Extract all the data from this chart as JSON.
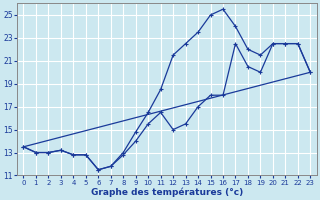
{
  "xlabel": "Graphe des températures (°c)",
  "bg_color": "#cce8f0",
  "grid_color": "#ffffff",
  "line_color": "#1a3a9a",
  "xlim": [
    -0.5,
    23.5
  ],
  "ylim": [
    11,
    26
  ],
  "xticks": [
    0,
    1,
    2,
    3,
    4,
    5,
    6,
    7,
    8,
    9,
    10,
    11,
    12,
    13,
    14,
    15,
    16,
    17,
    18,
    19,
    20,
    21,
    22,
    23
  ],
  "yticks": [
    11,
    13,
    15,
    17,
    19,
    21,
    23,
    25
  ],
  "curve1_x": [
    0,
    1,
    2,
    3,
    4,
    5,
    6,
    7,
    8,
    9,
    10,
    11,
    12,
    13,
    14,
    15,
    16,
    17,
    18,
    19,
    20,
    21,
    22,
    23
  ],
  "curve1_y": [
    13.5,
    13.0,
    13.0,
    13.2,
    12.8,
    12.8,
    11.5,
    11.8,
    13.0,
    14.8,
    16.5,
    18.5,
    21.5,
    22.5,
    23.5,
    25.0,
    25.5,
    24.0,
    22.0,
    21.5,
    22.5,
    22.5,
    22.5,
    20.0
  ],
  "curve2_x": [
    0,
    1,
    2,
    3,
    4,
    5,
    6,
    7,
    8,
    9,
    10,
    11,
    12,
    13,
    14,
    15,
    16,
    17,
    18,
    19,
    20,
    21,
    22,
    23
  ],
  "curve2_y": [
    13.5,
    13.0,
    13.0,
    13.2,
    12.8,
    12.8,
    11.5,
    11.8,
    12.8,
    14.0,
    15.5,
    16.5,
    15.0,
    15.5,
    17.0,
    18.0,
    18.0,
    22.5,
    20.5,
    20.0,
    22.5,
    22.5,
    22.5,
    20.0
  ],
  "curve3_x": [
    0,
    23
  ],
  "curve3_y": [
    13.5,
    20.0
  ],
  "marker": "+"
}
